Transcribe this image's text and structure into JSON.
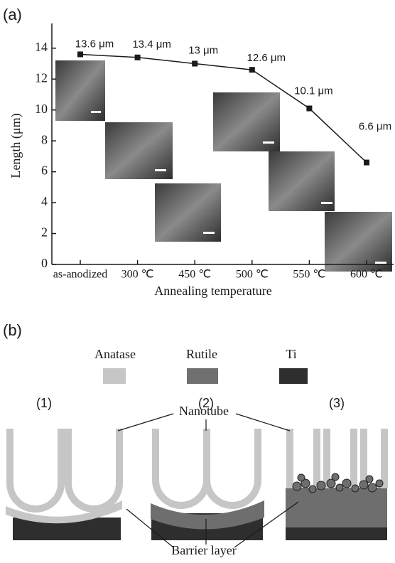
{
  "chart_data": {
    "type": "line",
    "panel_label": "(a)",
    "categories": [
      "as-anodized",
      "300 ℃",
      "450 ℃",
      "500 ℃",
      "550 ℃",
      "600 ℃"
    ],
    "values": [
      13.6,
      13.4,
      13,
      12.6,
      10.1,
      6.6
    ],
    "value_labels": [
      "13.6 μm",
      "13.4 μm",
      "13 μm",
      "12.6 μm",
      "10.1 μm",
      "6.6 μm"
    ],
    "color": "#1a1a1a",
    "ylabel": "Length (μm)",
    "xlabel": "Annealing temperature",
    "ylim": [
      0,
      15.6
    ],
    "yticks": [
      0,
      2,
      4,
      6,
      8,
      10,
      12,
      14
    ]
  },
  "diagram": {
    "panel_label": "(b)",
    "legend": [
      "Anatase",
      "Rutile",
      "Ti"
    ],
    "stages": [
      "(1)",
      "(2)",
      "(3)"
    ],
    "nanotube_label": "Nanotube",
    "barrier_label": "Barrier layer"
  }
}
